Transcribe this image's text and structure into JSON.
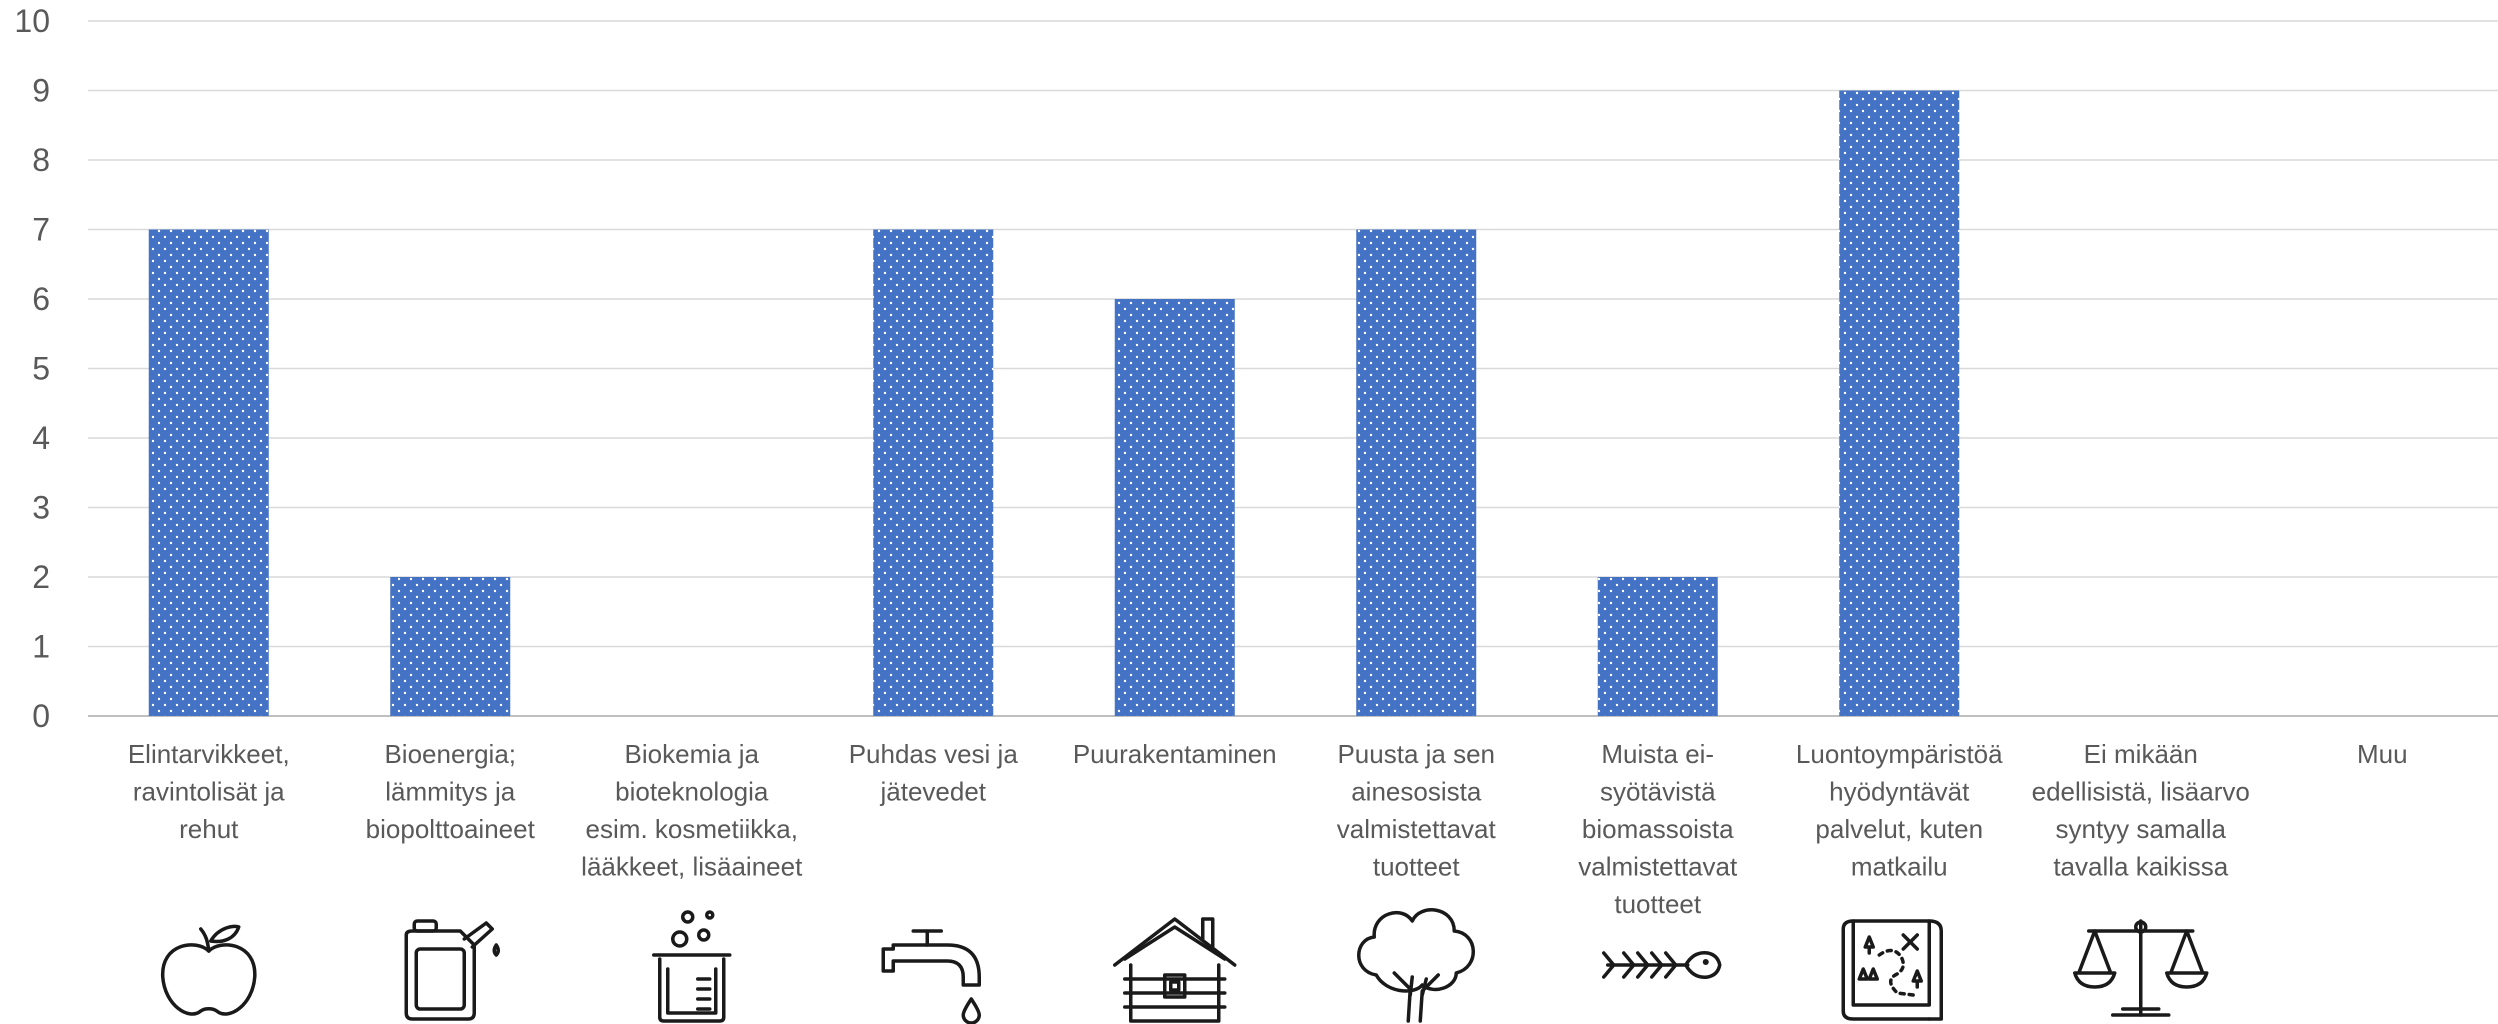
{
  "chart_data": {
    "type": "bar",
    "categories": [
      "Elintarvikkeet, ravintolisät ja rehut",
      "Bioenergia; lämmitys ja biopolttoaineet",
      "Biokemia ja bioteknologia esim. kosmetiikka, lääkkeet, lisäaineet",
      "Puhdas vesi ja jätevedet",
      "Puurakentaminen",
      "Puusta ja sen ainesosista valmistettavat tuotteet",
      "Muista ei-syötävistä biomassoista valmistettavat tuotteet",
      "Luontoympäristöä hyödyntävät palvelut, kuten matkailu",
      "Ei mikään edellisistä, lisäarvo syntyy samalla tavalla kaikissa",
      "Muu"
    ],
    "category_lines": [
      [
        "Elintarvikkeet,",
        "ravintolisät ja",
        "rehut"
      ],
      [
        "Bioenergia;",
        "lämmitys ja",
        "biopolttoaineet"
      ],
      [
        "Biokemia ja",
        "bioteknologia",
        "esim. kosmetiikka,",
        "lääkkeet, lisäaineet"
      ],
      [
        "Puhdas vesi ja",
        "jätevedet"
      ],
      [
        "Puurakentaminen"
      ],
      [
        "Puusta ja sen",
        "ainesosista",
        "valmistettavat",
        "tuotteet"
      ],
      [
        "Muista ei-",
        "syötävistä",
        "biomassoista",
        "valmistettavat",
        "tuotteet"
      ],
      [
        "Luontoympäristöä",
        "hyödyntävät",
        "palvelut, kuten",
        "matkailu"
      ],
      [
        "Ei mikään",
        "edellisistä, lisäarvo",
        "syntyy samalla",
        "tavalla kaikissa"
      ],
      [
        "Muu"
      ]
    ],
    "values": [
      7,
      2,
      0,
      7,
      6,
      7,
      2,
      9,
      0,
      0
    ],
    "yticks": [
      0,
      1,
      2,
      3,
      4,
      5,
      6,
      7,
      8,
      9,
      10
    ],
    "ylim": [
      0,
      10
    ],
    "grid": true,
    "title": "",
    "xlabel": "",
    "ylabel": "",
    "icons": [
      "apple-icon",
      "fuel-canister-icon",
      "beaker-icon",
      "water-tap-icon",
      "log-cabin-icon",
      "tree-icon",
      "fish-bone-icon",
      "treasure-map-icon",
      "balance-scale-icon",
      ""
    ],
    "colors": {
      "bar": "#4472c4",
      "bar_dots": "#ffffff",
      "grid": "#d9d9d9",
      "text": "#595959"
    }
  }
}
